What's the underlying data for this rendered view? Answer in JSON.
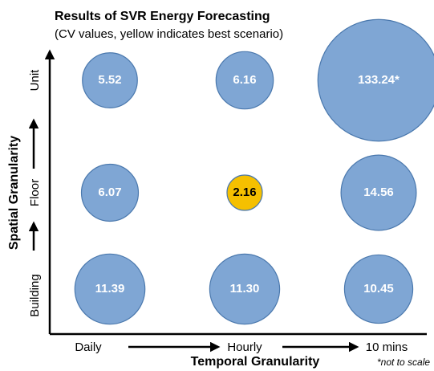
{
  "chart_data": {
    "type": "bubble",
    "title": "Results of SVR Energy Forecasting",
    "subtitle": "(CV values, yellow indicates best scenario)",
    "x_label": "Temporal Granularity",
    "y_label": "Spatial Granularity",
    "note": "*not to scale",
    "x_categories": [
      "Daily",
      "Hourly",
      "10 mins"
    ],
    "y_categories": [
      "Building",
      "Floor",
      "Unit"
    ],
    "values": [
      [
        11.39,
        11.3,
        10.45
      ],
      [
        6.07,
        2.16,
        14.56
      ],
      [
        5.52,
        6.16,
        133.24
      ]
    ],
    "value_labels": [
      [
        "11.39",
        "11.30",
        "10.45"
      ],
      [
        "6.07",
        "2.16",
        "14.56"
      ],
      [
        "5.52",
        "6.16",
        "133.24*"
      ]
    ],
    "colors": [
      [
        "#7fa6d4",
        "#7fa6d4",
        "#7fa6d4"
      ],
      [
        "#7fa6d4",
        "#f5c000",
        "#7fa6d4"
      ],
      [
        "#7fa6d4",
        "#7fa6d4",
        "#7fa6d4"
      ]
    ],
    "label_colors": [
      [
        "#ffffff",
        "#ffffff",
        "#ffffff"
      ],
      [
        "#ffffff",
        "#000000",
        "#ffffff"
      ],
      [
        "#ffffff",
        "#ffffff",
        "#ffffff"
      ]
    ]
  }
}
